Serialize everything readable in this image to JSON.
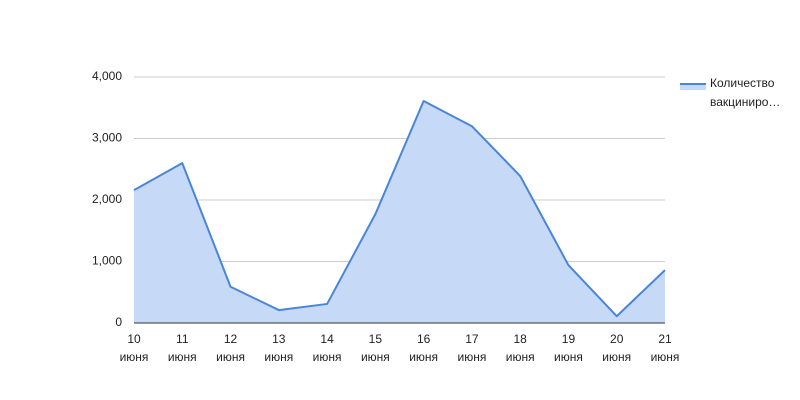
{
  "chart_data": {
    "type": "area",
    "categories": [
      "10 июня",
      "11 июня",
      "12 июня",
      "13 июня",
      "14 июня",
      "15 июня",
      "16 июня",
      "17 июня",
      "18 июня",
      "19 июня",
      "20 июня",
      "21 июня"
    ],
    "series": [
      {
        "name": "Количество вакциниро…",
        "color": "#4a86d8",
        "fill": "#c6d9f6",
        "values": [
          2160,
          2600,
          590,
          210,
          310,
          1770,
          3610,
          3200,
          2390,
          940,
          110,
          860
        ]
      }
    ],
    "ylim": [
      0,
      4000
    ],
    "yticks": [
      {
        "value": 0,
        "label": "0"
      },
      {
        "value": 1000,
        "label": "1,000"
      },
      {
        "value": 2000,
        "label": "2,000"
      },
      {
        "value": 3000,
        "label": "3,000"
      },
      {
        "value": 4000,
        "label": "4,000"
      }
    ],
    "grid": true,
    "legend": "right"
  }
}
